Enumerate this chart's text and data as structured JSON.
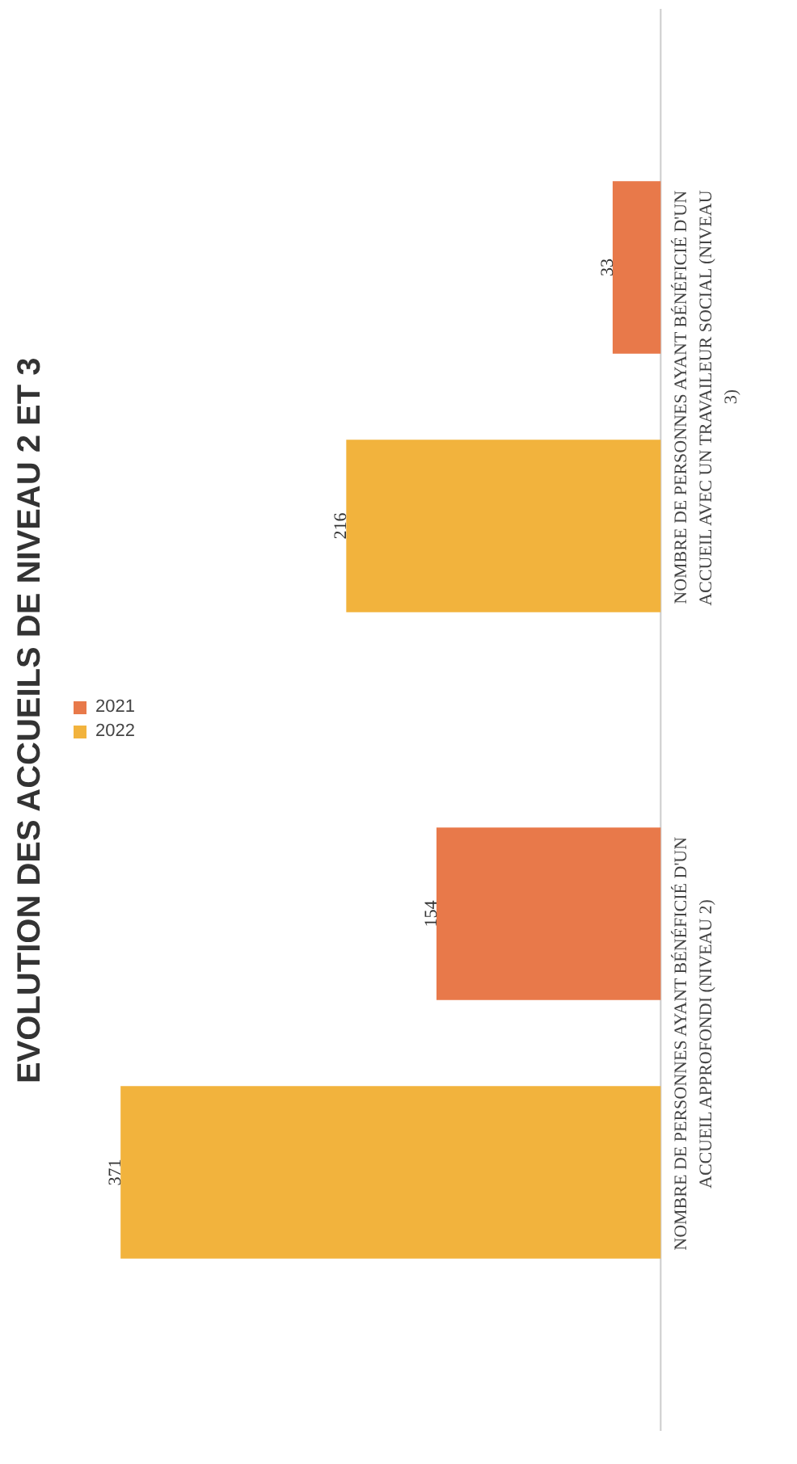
{
  "chart_data": {
    "type": "bar",
    "orientation": "horizontal",
    "title": "EVOLUTION DES ACCUEILS DE NIVEAU 2 ET 3",
    "categories": [
      "NOMBRE DE PERSONNES AYANT BÉNÉFICIÉ D'UN ACCUEIL AVEC UN TRAVAILEUR SOCIAL (NIVEAU 3)",
      "NOMBRE DE PERSONNES AYANT BÉNÉFICIÉ D'UN ACCUEIL APPROFONDI (NIVEAU 2)"
    ],
    "series": [
      {
        "name": "2021",
        "color": "#e8794a",
        "values": [
          33,
          154
        ]
      },
      {
        "name": "2022",
        "color": "#f2b33d",
        "values": [
          216,
          371
        ]
      }
    ],
    "data_labels": true,
    "legend": "left",
    "grid": false
  }
}
